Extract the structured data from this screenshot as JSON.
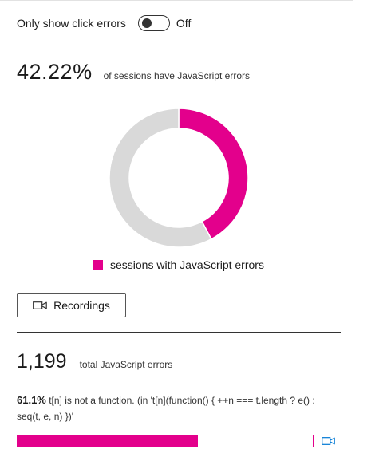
{
  "filter": {
    "label": "Only show click errors",
    "state_label": "Off",
    "checked": false
  },
  "summary": {
    "percent_text": "42.22%",
    "caption": "of sessions have JavaScript errors"
  },
  "colors": {
    "accent": "#e3008c",
    "track": "#d9d9d9"
  },
  "chart_data": {
    "type": "pie",
    "donut": true,
    "slices": [
      {
        "label": "sessions with JavaScript errors",
        "value": 42.22,
        "color": "#e3008c"
      },
      {
        "label": "",
        "value": 57.78,
        "color": "#d9d9d9"
      }
    ],
    "legend": [
      "sessions with JavaScript errors"
    ],
    "legend_position": "bottom"
  },
  "legend": {
    "label": "sessions with JavaScript errors"
  },
  "recordings_button": {
    "label": "Recordings",
    "icon": "video-camera-icon"
  },
  "totals": {
    "count_text": "1,199",
    "caption": "total JavaScript errors"
  },
  "errors": [
    {
      "percent_text": "61.1%",
      "percent_value": 61.1,
      "message": "t[n] is not a function. (in 't[n](function() { ++n === t.length ? e() : seq(t, e, n) })'",
      "icon": "video-camera-icon"
    }
  ]
}
